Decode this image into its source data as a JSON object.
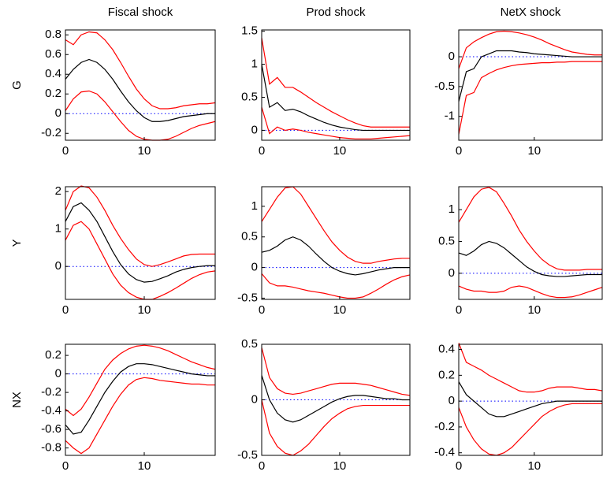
{
  "chart_data": [
    {
      "type": "line",
      "title": "Fiscal shock",
      "ylabel": "G",
      "x": [
        0,
        1,
        2,
        3,
        4,
        5,
        6,
        7,
        8,
        9,
        10,
        11,
        12,
        13,
        14,
        15,
        16,
        17,
        18,
        19
      ],
      "xlim": [
        0,
        19
      ],
      "xticks": [
        0,
        10
      ],
      "ylim": [
        -0.27,
        0.85
      ],
      "yticks": [
        -0.2,
        0,
        0.2,
        0.4,
        0.6,
        0.8
      ],
      "zero_line": {
        "value": 0,
        "color": "#0000ff"
      },
      "series": [
        {
          "color": "#ff0000",
          "values": [
            0.75,
            0.7,
            0.8,
            0.83,
            0.82,
            0.75,
            0.65,
            0.52,
            0.38,
            0.25,
            0.15,
            0.08,
            0.05,
            0.05,
            0.06,
            0.08,
            0.09,
            0.1,
            0.1,
            0.11
          ]
        },
        {
          "color": "#000000",
          "values": [
            0.35,
            0.45,
            0.52,
            0.55,
            0.52,
            0.45,
            0.35,
            0.23,
            0.12,
            0.03,
            -0.04,
            -0.08,
            -0.08,
            -0.07,
            -0.05,
            -0.03,
            -0.02,
            -0.01,
            0.0,
            0.0
          ]
        },
        {
          "color": "#ff0000",
          "values": [
            0.03,
            0.15,
            0.22,
            0.23,
            0.2,
            0.12,
            0.02,
            -0.08,
            -0.17,
            -0.23,
            -0.26,
            -0.27,
            -0.27,
            -0.26,
            -0.23,
            -0.19,
            -0.15,
            -0.12,
            -0.1,
            -0.08
          ]
        }
      ]
    },
    {
      "type": "line",
      "title": "Prod shock",
      "x": [
        0,
        1,
        2,
        3,
        4,
        5,
        6,
        7,
        8,
        9,
        10,
        11,
        12,
        13,
        14,
        15,
        16,
        17,
        18,
        19
      ],
      "xlim": [
        0,
        19
      ],
      "xticks": [
        0,
        10
      ],
      "ylim": [
        -0.15,
        1.52
      ],
      "yticks": [
        0,
        0.5,
        1,
        1.5
      ],
      "zero_line": {
        "value": 0,
        "color": "#0000ff"
      },
      "series": [
        {
          "color": "#ff0000",
          "values": [
            1.4,
            0.7,
            0.8,
            0.65,
            0.65,
            0.58,
            0.5,
            0.42,
            0.35,
            0.28,
            0.22,
            0.16,
            0.11,
            0.07,
            0.05,
            0.05,
            0.05,
            0.05,
            0.05,
            0.05
          ]
        },
        {
          "color": "#000000",
          "values": [
            1.0,
            0.35,
            0.42,
            0.3,
            0.32,
            0.28,
            0.22,
            0.17,
            0.12,
            0.08,
            0.05,
            0.03,
            0.01,
            0.0,
            0.0,
            0.0,
            0.0,
            0.0,
            0.0,
            0.0
          ]
        },
        {
          "color": "#ff0000",
          "values": [
            0.35,
            -0.05,
            0.05,
            0.0,
            0.02,
            0.0,
            -0.03,
            -0.05,
            -0.07,
            -0.09,
            -0.11,
            -0.12,
            -0.13,
            -0.13,
            -0.13,
            -0.12,
            -0.11,
            -0.1,
            -0.09,
            -0.08
          ]
        }
      ]
    },
    {
      "type": "line",
      "title": "NetX shock",
      "x": [
        0,
        1,
        2,
        3,
        4,
        5,
        6,
        7,
        8,
        9,
        10,
        11,
        12,
        13,
        14,
        15,
        16,
        17,
        18,
        19
      ],
      "xlim": [
        0,
        19
      ],
      "xticks": [
        0,
        10
      ],
      "ylim": [
        -1.4,
        0.45
      ],
      "yticks": [
        -1,
        -0.5,
        0
      ],
      "zero_line": {
        "value": 0,
        "color": "#0000ff"
      },
      "series": [
        {
          "color": "#ff0000",
          "values": [
            -0.2,
            0.15,
            0.25,
            0.32,
            0.38,
            0.42,
            0.43,
            0.42,
            0.4,
            0.37,
            0.33,
            0.28,
            0.22,
            0.17,
            0.12,
            0.08,
            0.06,
            0.04,
            0.03,
            0.03
          ]
        },
        {
          "color": "#000000",
          "values": [
            -0.75,
            -0.25,
            -0.2,
            0.0,
            0.05,
            0.1,
            0.1,
            0.1,
            0.08,
            0.07,
            0.05,
            0.04,
            0.03,
            0.02,
            0.01,
            0.0,
            0.0,
            0.0,
            0.0,
            0.0
          ]
        },
        {
          "color": "#ff0000",
          "values": [
            -1.3,
            -0.65,
            -0.6,
            -0.35,
            -0.28,
            -0.22,
            -0.18,
            -0.15,
            -0.13,
            -0.12,
            -0.11,
            -0.1,
            -0.1,
            -0.09,
            -0.09,
            -0.08,
            -0.08,
            -0.08,
            -0.08,
            -0.08
          ]
        }
      ]
    },
    {
      "type": "line",
      "ylabel": "Y",
      "x": [
        0,
        1,
        2,
        3,
        4,
        5,
        6,
        7,
        8,
        9,
        10,
        11,
        12,
        13,
        14,
        15,
        16,
        17,
        18,
        19
      ],
      "xlim": [
        0,
        19
      ],
      "xticks": [
        0,
        10
      ],
      "ylim": [
        -0.88,
        2.13
      ],
      "yticks": [
        0,
        1,
        2
      ],
      "zero_line": {
        "value": 0,
        "color": "#0000ff"
      },
      "series": [
        {
          "color": "#ff0000",
          "values": [
            1.5,
            2.0,
            2.15,
            2.1,
            1.85,
            1.5,
            1.1,
            0.75,
            0.45,
            0.2,
            0.05,
            0.0,
            0.05,
            0.12,
            0.2,
            0.28,
            0.32,
            0.33,
            0.33,
            0.33
          ]
        },
        {
          "color": "#000000",
          "values": [
            1.2,
            1.6,
            1.7,
            1.5,
            1.2,
            0.8,
            0.4,
            0.05,
            -0.2,
            -0.35,
            -0.42,
            -0.4,
            -0.33,
            -0.25,
            -0.15,
            -0.08,
            -0.03,
            0.0,
            0.02,
            0.02
          ]
        },
        {
          "color": "#ff0000",
          "values": [
            0.7,
            1.1,
            1.2,
            1.0,
            0.6,
            0.2,
            -0.2,
            -0.5,
            -0.7,
            -0.82,
            -0.88,
            -0.88,
            -0.8,
            -0.7,
            -0.58,
            -0.45,
            -0.32,
            -0.22,
            -0.15,
            -0.12
          ]
        }
      ]
    },
    {
      "type": "line",
      "x": [
        0,
        1,
        2,
        3,
        4,
        5,
        6,
        7,
        8,
        9,
        10,
        11,
        12,
        13,
        14,
        15,
        16,
        17,
        18,
        19
      ],
      "xlim": [
        0,
        19
      ],
      "xticks": [
        0,
        10
      ],
      "ylim": [
        -0.52,
        1.32
      ],
      "yticks": [
        -0.5,
        0,
        0.5,
        1
      ],
      "zero_line": {
        "value": 0,
        "color": "#0000ff"
      },
      "series": [
        {
          "color": "#ff0000",
          "values": [
            0.75,
            0.95,
            1.15,
            1.3,
            1.32,
            1.2,
            1.0,
            0.8,
            0.6,
            0.42,
            0.28,
            0.17,
            0.1,
            0.07,
            0.07,
            0.1,
            0.12,
            0.14,
            0.15,
            0.15
          ]
        },
        {
          "color": "#000000",
          "values": [
            0.25,
            0.28,
            0.35,
            0.45,
            0.5,
            0.45,
            0.35,
            0.22,
            0.1,
            0.0,
            -0.06,
            -0.1,
            -0.12,
            -0.1,
            -0.07,
            -0.04,
            -0.02,
            0.0,
            0.0,
            0.0
          ]
        },
        {
          "color": "#ff0000",
          "values": [
            -0.1,
            -0.25,
            -0.3,
            -0.3,
            -0.32,
            -0.35,
            -0.38,
            -0.4,
            -0.42,
            -0.45,
            -0.48,
            -0.5,
            -0.5,
            -0.48,
            -0.42,
            -0.35,
            -0.27,
            -0.2,
            -0.15,
            -0.12
          ]
        }
      ]
    },
    {
      "type": "line",
      "x": [
        0,
        1,
        2,
        3,
        4,
        5,
        6,
        7,
        8,
        9,
        10,
        11,
        12,
        13,
        14,
        15,
        16,
        17,
        18,
        19
      ],
      "xlim": [
        0,
        19
      ],
      "xticks": [
        0,
        10
      ],
      "ylim": [
        -0.41,
        1.36
      ],
      "yticks": [
        0,
        0.5,
        1
      ],
      "zero_line": {
        "value": 0,
        "color": "#0000ff"
      },
      "series": [
        {
          "color": "#ff0000",
          "values": [
            0.8,
            1.0,
            1.2,
            1.32,
            1.35,
            1.28,
            1.1,
            0.9,
            0.68,
            0.5,
            0.35,
            0.22,
            0.13,
            0.07,
            0.05,
            0.05,
            0.05,
            0.06,
            0.06,
            0.06
          ]
        },
        {
          "color": "#000000",
          "values": [
            0.32,
            0.28,
            0.35,
            0.45,
            0.5,
            0.47,
            0.4,
            0.3,
            0.2,
            0.1,
            0.03,
            -0.02,
            -0.04,
            -0.05,
            -0.05,
            -0.04,
            -0.03,
            -0.02,
            -0.02,
            -0.02
          ]
        },
        {
          "color": "#ff0000",
          "values": [
            -0.2,
            -0.25,
            -0.28,
            -0.28,
            -0.3,
            -0.3,
            -0.28,
            -0.22,
            -0.2,
            -0.22,
            -0.27,
            -0.32,
            -0.36,
            -0.38,
            -0.38,
            -0.37,
            -0.34,
            -0.3,
            -0.26,
            -0.22
          ]
        }
      ]
    },
    {
      "type": "line",
      "ylabel": "NX",
      "x": [
        0,
        1,
        2,
        3,
        4,
        5,
        6,
        7,
        8,
        9,
        10,
        11,
        12,
        13,
        14,
        15,
        16,
        17,
        18,
        19
      ],
      "xlim": [
        0,
        19
      ],
      "xticks": [
        0,
        10
      ],
      "ylim": [
        -0.88,
        0.32
      ],
      "yticks": [
        -0.8,
        -0.6,
        -0.4,
        -0.2,
        0,
        0.2
      ],
      "zero_line": {
        "value": 0,
        "color": "#0000ff"
      },
      "series": [
        {
          "color": "#ff0000",
          "values": [
            -0.38,
            -0.45,
            -0.38,
            -0.25,
            -0.1,
            0.05,
            0.15,
            0.22,
            0.27,
            0.3,
            0.31,
            0.3,
            0.28,
            0.25,
            0.21,
            0.17,
            0.13,
            0.1,
            0.07,
            0.05
          ]
        },
        {
          "color": "#000000",
          "values": [
            -0.55,
            -0.65,
            -0.63,
            -0.5,
            -0.35,
            -0.2,
            -0.08,
            0.02,
            0.08,
            0.11,
            0.11,
            0.1,
            0.08,
            0.06,
            0.04,
            0.02,
            0.0,
            -0.01,
            -0.02,
            -0.02
          ]
        },
        {
          "color": "#ff0000",
          "values": [
            -0.72,
            -0.8,
            -0.86,
            -0.8,
            -0.65,
            -0.5,
            -0.35,
            -0.22,
            -0.12,
            -0.06,
            -0.04,
            -0.05,
            -0.07,
            -0.08,
            -0.09,
            -0.1,
            -0.11,
            -0.11,
            -0.12,
            -0.12
          ]
        }
      ]
    },
    {
      "type": "line",
      "x": [
        0,
        1,
        2,
        3,
        4,
        5,
        6,
        7,
        8,
        9,
        10,
        11,
        12,
        13,
        14,
        15,
        16,
        17,
        18,
        19
      ],
      "xlim": [
        0,
        19
      ],
      "xticks": [
        0,
        10
      ],
      "ylim": [
        -0.5,
        0.5
      ],
      "yticks": [
        -0.5,
        0,
        0.5
      ],
      "zero_line": {
        "value": 0,
        "color": "#0000ff"
      },
      "series": [
        {
          "color": "#ff0000",
          "values": [
            0.47,
            0.2,
            0.1,
            0.06,
            0.05,
            0.06,
            0.08,
            0.1,
            0.12,
            0.14,
            0.15,
            0.15,
            0.15,
            0.14,
            0.13,
            0.11,
            0.09,
            0.07,
            0.05,
            0.04
          ]
        },
        {
          "color": "#000000",
          "values": [
            0.22,
            0.0,
            -0.12,
            -0.18,
            -0.2,
            -0.18,
            -0.14,
            -0.1,
            -0.06,
            -0.02,
            0.01,
            0.03,
            0.04,
            0.04,
            0.03,
            0.02,
            0.01,
            0.01,
            0.0,
            0.0
          ]
        },
        {
          "color": "#ff0000",
          "values": [
            0.0,
            -0.3,
            -0.42,
            -0.48,
            -0.5,
            -0.46,
            -0.4,
            -0.32,
            -0.24,
            -0.17,
            -0.12,
            -0.08,
            -0.06,
            -0.05,
            -0.05,
            -0.05,
            -0.05,
            -0.05,
            -0.05,
            -0.05
          ]
        }
      ]
    },
    {
      "type": "line",
      "x": [
        0,
        1,
        2,
        3,
        4,
        5,
        6,
        7,
        8,
        9,
        10,
        11,
        12,
        13,
        14,
        15,
        16,
        17,
        18,
        19
      ],
      "xlim": [
        0,
        19
      ],
      "xticks": [
        0,
        10
      ],
      "ylim": [
        -0.42,
        0.44
      ],
      "yticks": [
        -0.4,
        -0.2,
        0,
        0.2,
        0.4
      ],
      "zero_line": {
        "value": 0,
        "color": "#0000ff"
      },
      "series": [
        {
          "color": "#ff0000",
          "values": [
            0.45,
            0.3,
            0.27,
            0.24,
            0.2,
            0.17,
            0.14,
            0.11,
            0.08,
            0.07,
            0.07,
            0.08,
            0.1,
            0.11,
            0.11,
            0.11,
            0.1,
            0.09,
            0.09,
            0.08
          ]
        },
        {
          "color": "#000000",
          "values": [
            0.15,
            0.05,
            0.0,
            -0.05,
            -0.1,
            -0.12,
            -0.12,
            -0.1,
            -0.08,
            -0.06,
            -0.04,
            -0.02,
            -0.01,
            0.0,
            0.0,
            0.0,
            0.0,
            0.0,
            0.0,
            0.0
          ]
        },
        {
          "color": "#ff0000",
          "values": [
            -0.05,
            -0.2,
            -0.3,
            -0.37,
            -0.41,
            -0.42,
            -0.4,
            -0.36,
            -0.3,
            -0.24,
            -0.18,
            -0.12,
            -0.08,
            -0.05,
            -0.03,
            -0.02,
            -0.02,
            -0.02,
            -0.02,
            -0.02
          ]
        }
      ]
    }
  ]
}
